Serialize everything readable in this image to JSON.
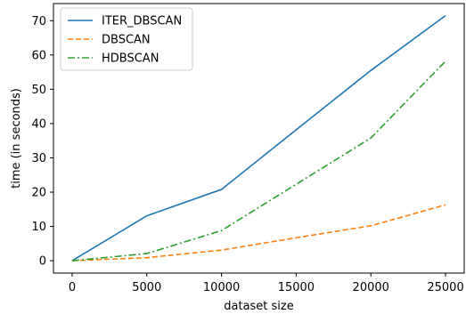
{
  "chart_data": {
    "type": "line",
    "title": "",
    "xlabel": "dataset size",
    "ylabel": "time (in seconds)",
    "xlim": [
      -1250,
      26250
    ],
    "ylim": [
      -3.6,
      75
    ],
    "x_ticks": [
      0,
      5000,
      10000,
      15000,
      20000,
      25000
    ],
    "y_ticks": [
      0,
      10,
      20,
      30,
      40,
      50,
      60,
      70
    ],
    "grid": false,
    "legend_position": "top-left",
    "series": [
      {
        "name": "ITER_DBSCAN",
        "color": "#1f77b4",
        "dash": "solid",
        "x": [
          0,
          5000,
          10000,
          15000,
          20000,
          25000
        ],
        "y": [
          0,
          13.1,
          20.8,
          38.2,
          55.5,
          71.5
        ]
      },
      {
        "name": "DBSCAN",
        "color": "#ff7f0e",
        "dash": "dashed",
        "x": [
          0,
          5000,
          10000,
          15000,
          20000,
          25000
        ],
        "y": [
          0,
          0.9,
          3.1,
          6.7,
          10.2,
          16.3
        ]
      },
      {
        "name": "HDBSCAN",
        "color": "#2ca02c",
        "dash": "dashdot",
        "x": [
          0,
          5000,
          10000,
          15000,
          20000,
          25000
        ],
        "y": [
          0,
          2.1,
          8.8,
          22.3,
          35.8,
          58.2
        ]
      }
    ]
  }
}
